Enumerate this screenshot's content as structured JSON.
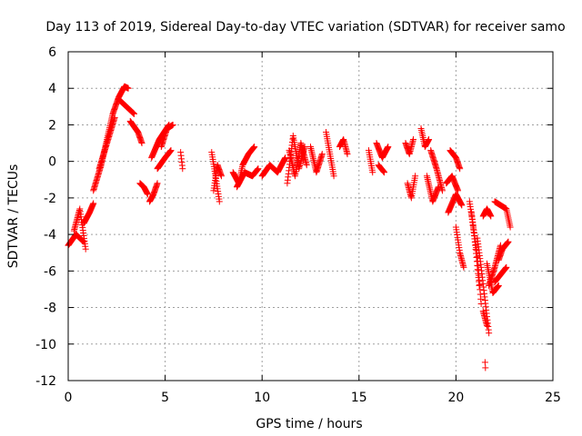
{
  "chart_data": {
    "type": "scatter",
    "title": "Day 113 of 2019, Sidereal Day-to-day VTEC variation (SDTVAR) for receiver samo",
    "xlabel": "GPS time / hours",
    "ylabel": "SDTVAR / TECUs",
    "xlim": [
      0,
      25
    ],
    "ylim": [
      -12,
      6
    ],
    "xticks": [
      0,
      5,
      10,
      15,
      20,
      25
    ],
    "yticks": [
      -12,
      -10,
      -8,
      -6,
      -4,
      -2,
      0,
      2,
      4,
      6
    ],
    "grid": true,
    "marker": "plus",
    "color": "#ff0000",
    "series": [
      {
        "name": "SDTVAR",
        "segments": [
          {
            "x": [
              0.0,
              0.4,
              0.8
            ],
            "y": [
              -4.6,
              -4.0,
              -4.4
            ]
          },
          {
            "x": [
              0.3,
              0.6,
              0.9
            ],
            "y": [
              -3.8,
              -2.6,
              -4.8
            ]
          },
          {
            "x": [
              0.8,
              1.1,
              1.3
            ],
            "y": [
              -3.4,
              -2.8,
              -2.3
            ]
          },
          {
            "x": [
              1.3,
              1.7,
              2.0,
              2.3,
              2.6,
              2.9,
              3.1
            ],
            "y": [
              -1.6,
              -0.2,
              1.2,
              2.6,
              3.5,
              4.1,
              4.0
            ]
          },
          {
            "x": [
              1.6,
              2.0,
              2.4
            ],
            "y": [
              -0.4,
              1.0,
              2.4
            ]
          },
          {
            "x": [
              2.6,
              3.0,
              3.4
            ],
            "y": [
              3.4,
              3.0,
              2.6
            ]
          },
          {
            "x": [
              3.2,
              3.6,
              3.8
            ],
            "y": [
              2.2,
              1.6,
              1.0
            ]
          },
          {
            "x": [
              3.7,
              3.9,
              4.1
            ],
            "y": [
              -1.2,
              -1.4,
              -1.8
            ]
          },
          {
            "x": [
              4.2,
              4.4,
              4.6
            ],
            "y": [
              -2.2,
              -1.8,
              -1.2
            ]
          },
          {
            "x": [
              4.3,
              4.7,
              5.2
            ],
            "y": [
              0.2,
              1.2,
              2.0
            ]
          },
          {
            "x": [
              4.8,
              5.1,
              5.4
            ],
            "y": [
              0.8,
              1.8,
              2.0
            ]
          },
          {
            "x": [
              4.6,
              5.0,
              5.3
            ],
            "y": [
              -0.4,
              0.2,
              0.6
            ]
          },
          {
            "x": [
              5.8,
              5.9
            ],
            "y": [
              0.5,
              -0.4
            ]
          },
          {
            "x": [
              7.4,
              7.6,
              7.8
            ],
            "y": [
              0.5,
              -0.8,
              -2.2
            ]
          },
          {
            "x": [
              7.5,
              7.7,
              7.9
            ],
            "y": [
              -1.6,
              -0.2,
              -0.8
            ]
          },
          {
            "x": [
              8.5,
              8.8,
              9.0,
              9.3,
              9.6
            ],
            "y": [
              -0.6,
              -1.2,
              -0.2,
              0.4,
              0.8
            ]
          },
          {
            "x": [
              8.7,
              9.1,
              9.5,
              9.8
            ],
            "y": [
              -1.4,
              -0.6,
              -0.8,
              -0.4
            ]
          },
          {
            "x": [
              10.0,
              10.4,
              10.8,
              11.2
            ],
            "y": [
              -0.8,
              -0.2,
              -0.6,
              0.2
            ]
          },
          {
            "x": [
              11.3,
              11.6,
              11.9,
              12.2
            ],
            "y": [
              -1.2,
              1.4,
              -0.4,
              0.8
            ]
          },
          {
            "x": [
              11.4,
              11.7,
              12.0,
              12.3
            ],
            "y": [
              0.6,
              -0.8,
              1.0,
              -0.2
            ]
          },
          {
            "x": [
              12.5,
              12.8,
              13.1
            ],
            "y": [
              0.8,
              -0.6,
              0.4
            ]
          },
          {
            "x": [
              13.3,
              13.5,
              13.7
            ],
            "y": [
              1.6,
              0.4,
              -0.8
            ]
          },
          {
            "x": [
              14.0,
              14.2,
              14.4
            ],
            "y": [
              0.8,
              1.2,
              0.4
            ]
          },
          {
            "x": [
              15.5,
              15.7
            ],
            "y": [
              0.6,
              -0.6
            ]
          },
          {
            "x": [
              15.9,
              16.2,
              16.5
            ],
            "y": [
              1.0,
              0.2,
              0.8
            ]
          },
          {
            "x": [
              16.0,
              16.3
            ],
            "y": [
              -0.2,
              -0.6
            ]
          },
          {
            "x": [
              17.4,
              17.6,
              17.8
            ],
            "y": [
              1.0,
              0.4,
              1.2
            ]
          },
          {
            "x": [
              17.5,
              17.7,
              17.9
            ],
            "y": [
              -1.2,
              -2.0,
              -0.8
            ]
          },
          {
            "x": [
              18.2,
              18.4,
              18.6
            ],
            "y": [
              1.8,
              0.8,
              1.2
            ]
          },
          {
            "x": [
              18.5,
              18.8,
              19.1
            ],
            "y": [
              -0.8,
              -2.2,
              -1.4
            ]
          },
          {
            "x": [
              18.7,
              19.0,
              19.3
            ],
            "y": [
              0.6,
              -0.4,
              -1.6
            ]
          },
          {
            "x": [
              19.5,
              19.8,
              20.1
            ],
            "y": [
              -1.2,
              -0.8,
              -1.6
            ]
          },
          {
            "x": [
              19.6,
              20.0,
              20.3
            ],
            "y": [
              -2.8,
              -1.8,
              -2.4
            ]
          },
          {
            "x": [
              19.7,
              20.0,
              20.2
            ],
            "y": [
              0.6,
              0.2,
              -0.4
            ]
          },
          {
            "x": [
              20.0,
              20.2,
              20.4
            ],
            "y": [
              -3.6,
              -5.0,
              -5.8
            ]
          },
          {
            "x": [
              20.7,
              20.9,
              21.1,
              21.3
            ],
            "y": [
              -2.2,
              -3.6,
              -5.2,
              -7.8
            ]
          },
          {
            "x": [
              20.8,
              21.0,
              21.2
            ],
            "y": [
              -2.8,
              -4.6,
              -6.8
            ]
          },
          {
            "x": [
              21.1,
              21.3,
              21.5,
              21.7
            ],
            "y": [
              -4.2,
              -5.8,
              -7.6,
              -9.4
            ]
          },
          {
            "x": [
              21.4,
              21.6
            ],
            "y": [
              -8.2,
              -9.0
            ]
          },
          {
            "x": [
              21.5
            ],
            "y": [
              -11.0
            ]
          },
          {
            "x": [
              21.4,
              21.6,
              21.8
            ],
            "y": [
              -3.0,
              -2.6,
              -3.0
            ]
          },
          {
            "x": [
              21.6,
              21.9,
              22.2
            ],
            "y": [
              -5.6,
              -7.2,
              -6.8
            ]
          },
          {
            "x": [
              21.7,
              22.0,
              22.3
            ],
            "y": [
              -6.8,
              -5.8,
              -4.6
            ]
          },
          {
            "x": [
              22.0,
              22.3,
              22.6
            ],
            "y": [
              -6.6,
              -6.2,
              -5.8
            ]
          },
          {
            "x": [
              22.2,
              22.4,
              22.7
            ],
            "y": [
              -5.4,
              -4.8,
              -4.4
            ]
          },
          {
            "x": [
              22.0,
              22.3,
              22.6,
              22.8
            ],
            "y": [
              -2.2,
              -2.4,
              -2.6,
              -3.6
            ]
          }
        ]
      }
    ]
  }
}
